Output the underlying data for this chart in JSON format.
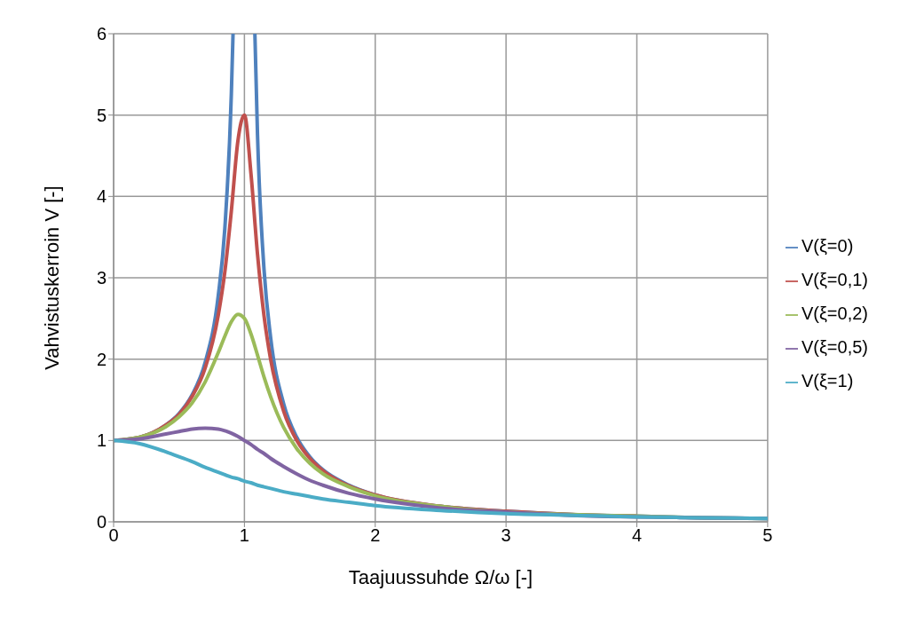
{
  "chart_data": {
    "type": "line",
    "xlabel": "Taajuussuhde Ω/ω [-]",
    "ylabel": "Vahvistuskerroin V [-]",
    "x": [
      0,
      0.2,
      0.4,
      0.5,
      0.6,
      0.7,
      0.8,
      0.85,
      0.9,
      0.95,
      1,
      1.05,
      1.1,
      1.15,
      1.2,
      1.3,
      1.4,
      1.5,
      1.6,
      1.8,
      2,
      2.5,
      3,
      3.5,
      4,
      4.5,
      5
    ],
    "series": [
      {
        "name": "V(ξ=0)",
        "color": "#4f81bd",
        "x": [
          0,
          0.2,
          0.4,
          0.5,
          0.6,
          0.7,
          0.8,
          0.85,
          0.9,
          0.913,
          1,
          1.08,
          1.1,
          1.15,
          1.2,
          1.3,
          1.4,
          1.5,
          1.6,
          1.8,
          2,
          2.5,
          3,
          3.5,
          4,
          4.5,
          5
        ],
        "values": [
          1,
          1.04,
          1.19,
          1.33,
          1.56,
          1.96,
          2.78,
          3.6,
          5.26,
          6,
          null,
          6,
          4.76,
          3.1,
          2.27,
          1.45,
          1.04,
          0.8,
          0.64,
          0.45,
          0.33,
          0.19,
          0.13,
          0.09,
          0.07,
          0.05,
          0.04
        ]
      },
      {
        "name": "V(ξ=0,1)",
        "color": "#c0504d",
        "values": [
          1,
          1.04,
          1.19,
          1.32,
          1.54,
          1.89,
          2.54,
          3.07,
          3.82,
          4.68,
          5,
          4.28,
          3.29,
          2.53,
          2,
          1.36,
          1,
          0.78,
          0.63,
          0.44,
          0.33,
          0.19,
          0.13,
          0.09,
          0.07,
          null,
          null
        ]
      },
      {
        "name": "V(ξ=0,2)",
        "color": "#9bbb59",
        "values": [
          1,
          1.04,
          1.17,
          1.29,
          1.46,
          1.72,
          2.08,
          2.28,
          2.46,
          2.55,
          2.5,
          2.31,
          2.05,
          1.78,
          1.54,
          1.16,
          0.9,
          0.72,
          0.59,
          0.43,
          0.32,
          0.19,
          0.12,
          0.09,
          0.07,
          0.05,
          0.04
        ]
      },
      {
        "name": "V(ξ=0,5)",
        "color": "#8064a2",
        "values": [
          1,
          1.02,
          1.08,
          1.11,
          1.14,
          1.15,
          1.14,
          1.12,
          1.09,
          1.05,
          1,
          0.95,
          0.89,
          0.84,
          0.78,
          0.68,
          0.59,
          0.51,
          0.45,
          0.35,
          0.28,
          0.17,
          0.12,
          0.08,
          0.06,
          0.05,
          0.04
        ]
      },
      {
        "name": "V(ξ=1)",
        "color": "#4bacc6",
        "values": [
          1,
          0.96,
          0.86,
          0.8,
          0.74,
          0.67,
          0.61,
          0.58,
          0.55,
          0.53,
          0.5,
          0.48,
          0.45,
          0.43,
          0.41,
          0.37,
          0.34,
          0.31,
          0.28,
          0.24,
          0.2,
          0.14,
          0.1,
          0.08,
          0.06,
          0.05,
          0.04
        ]
      }
    ],
    "xlim": [
      0,
      5
    ],
    "xticks": [
      0,
      1,
      2,
      3,
      4,
      5
    ],
    "ylim": [
      0,
      6
    ],
    "yticks": [
      0,
      1,
      2,
      3,
      4,
      5,
      6
    ],
    "grid": true,
    "legend": "right",
    "marker": "none",
    "line_style": "solid"
  }
}
